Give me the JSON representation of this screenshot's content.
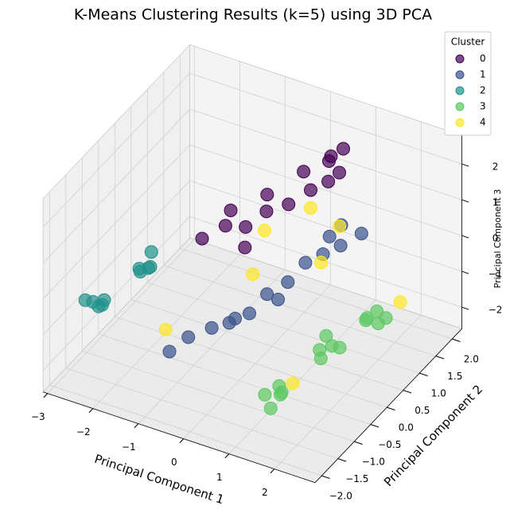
{
  "chart_data": {
    "type": "scatter3d",
    "title": "K-Means Clustering Results (k=5) using 3D PCA",
    "xlabel": "Principal Component 1",
    "ylabel": "Principal Component 2",
    "zlabel": "Principal Component 3",
    "legend_title": "Cluster",
    "legend": "upper right",
    "grid": true,
    "xlim": [
      -3.1,
      2.9
    ],
    "ylim": [
      -2.2,
      2.3
    ],
    "zlim": [
      -2.6,
      2.8
    ],
    "xticks": [
      {
        "value": -3,
        "label": "−3"
      },
      {
        "value": -2,
        "label": "−2"
      },
      {
        "value": -1,
        "label": "−1"
      },
      0,
      1,
      2
    ],
    "yticks": [
      {
        "value": -2,
        "label": "−2.0"
      },
      {
        "value": -1.5,
        "label": "−1.5"
      },
      {
        "value": -1,
        "label": "−1.0"
      },
      {
        "value": -0.5,
        "label": "−0.5"
      },
      {
        "value": 0,
        "label": "0.0"
      },
      0.5,
      {
        "value": 1,
        "label": "1.0"
      },
      1.5,
      {
        "value": 2,
        "label": "2.0"
      }
    ],
    "zticks": [
      {
        "value": -2,
        "label": "−2"
      },
      {
        "value": -1,
        "label": "−1"
      },
      0,
      1,
      2
    ],
    "series": [
      {
        "name": "0",
        "color": "#440154",
        "x": [
          -0.6,
          -0.3,
          0.0,
          0.2,
          -0.4,
          0.1,
          -0.1,
          0.3,
          0.5,
          0.2,
          0.6,
          0.4,
          0.7,
          0.3,
          0.5
        ],
        "y": [
          -0.8,
          -0.5,
          -0.3,
          -0.6,
          -0.2,
          0.2,
          0.5,
          0.6,
          1.0,
          1.2,
          1.4,
          1.7,
          1.6,
          1.9,
          2.0
        ],
        "z": [
          1.4,
          1.6,
          1.5,
          1.3,
          1.7,
          1.5,
          1.6,
          1.4,
          1.5,
          1.7,
          1.4,
          1.6,
          1.5,
          1.5,
          1.7
        ]
      },
      {
        "name": "1",
        "color": "#3b528b",
        "x": [
          -0.6,
          -0.4,
          -0.1,
          0.2,
          0.3,
          0.0,
          0.4,
          0.5,
          0.6,
          0.7,
          0.8,
          0.6,
          0.9,
          0.7,
          0.5
        ],
        "y": [
          -1.8,
          -1.5,
          -1.2,
          -0.9,
          -0.6,
          -0.8,
          -0.2,
          0.3,
          0.7,
          1.1,
          1.5,
          1.8,
          2.0,
          1.3,
          0.0
        ],
        "z": [
          -0.8,
          -0.6,
          -0.5,
          -0.4,
          -0.5,
          -0.7,
          -0.3,
          -0.4,
          -0.2,
          -0.3,
          -0.4,
          -0.2,
          -0.5,
          0.0,
          -0.6
        ]
      },
      {
        "name": "2",
        "color": "#21918c",
        "x": [
          -2.5,
          -2.4,
          -2.6,
          -2.3,
          -2.45,
          -2.2,
          -2.1,
          -2.25,
          -2.0,
          -2.15
        ],
        "y": [
          -1.5,
          -1.3,
          -1.6,
          -1.5,
          -1.4,
          -0.5,
          -0.3,
          -0.4,
          -0.5,
          -0.2
        ],
        "z": [
          -0.5,
          -0.6,
          -0.4,
          -0.5,
          -0.7,
          -0.4,
          -0.5,
          -0.6,
          -0.3,
          -0.2
        ]
      },
      {
        "name": "3",
        "color": "#5ec962",
        "x": [
          1.0,
          1.2,
          1.3,
          1.1,
          1.2,
          1.2,
          1.4,
          1.3,
          1.5,
          1.2,
          1.5,
          1.7,
          1.6,
          1.8,
          1.6
        ],
        "y": [
          -1.1,
          -0.9,
          -1.0,
          -0.8,
          -1.2,
          0.3,
          0.4,
          0.2,
          0.5,
          0.5,
          1.3,
          1.4,
          1.5,
          1.5,
          1.2
        ],
        "z": [
          -2.0,
          -2.1,
          -1.9,
          -2.0,
          -2.2,
          -2.0,
          -1.9,
          -2.1,
          -2.0,
          -1.8,
          -2.0,
          -2.1,
          -1.9,
          -2.0,
          -1.8
        ]
      },
      {
        "name": "4",
        "color": "#fde725",
        "x": [
          0.2,
          0.5,
          0.7,
          -0.9,
          0.3,
          1.9,
          1.4,
          0.8
        ],
        "y": [
          0.0,
          1.0,
          1.6,
          -1.5,
          -0.5,
          1.8,
          -0.8,
          0.9
        ],
        "z": [
          1.2,
          1.0,
          0.0,
          -0.6,
          0.5,
          -1.8,
          -1.8,
          -0.3
        ]
      }
    ]
  }
}
